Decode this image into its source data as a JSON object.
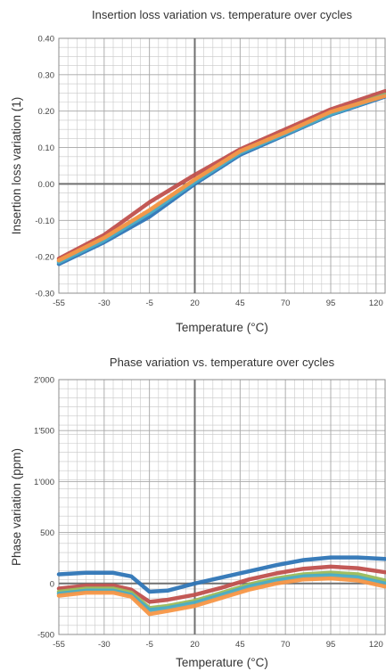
{
  "chart_data": [
    {
      "type": "line",
      "title": "Insertion loss variation vs. temperature over cycles",
      "xlabel": "Temperature (°C)",
      "ylabel": "Insertion loss variation (1)",
      "xlim": [
        -55,
        125
      ],
      "ylim": [
        -0.3,
        0.4
      ],
      "x_ticks": [
        -55,
        -30,
        -5,
        20,
        45,
        70,
        95,
        120
      ],
      "y_ticks": [
        0.4,
        0.3,
        0.2,
        0.1,
        0.0,
        -0.1,
        -0.2,
        -0.3
      ],
      "x_tick_labels": [
        "-55",
        "-30",
        "-5",
        "20",
        "45",
        "70",
        "95",
        "120"
      ],
      "y_tick_labels": [
        "0.40",
        "0.30",
        "0.20",
        "0.10",
        "0.00",
        "-0.10",
        "-0.20",
        "-0.30"
      ],
      "grid": true,
      "x": [
        -55,
        -30,
        -5,
        20,
        45,
        70,
        95,
        125
      ],
      "series": [
        {
          "color": "#2e75b6",
          "values": [
            -0.22,
            -0.16,
            -0.09,
            0.0,
            0.08,
            0.135,
            0.19,
            0.24
          ]
        },
        {
          "color": "#c0504d",
          "values": [
            -0.205,
            -0.14,
            -0.05,
            0.025,
            0.095,
            0.15,
            0.205,
            0.255
          ]
        },
        {
          "color": "#9bbb59",
          "values": [
            -0.212,
            -0.15,
            -0.075,
            0.01,
            0.088,
            0.14,
            0.195,
            0.245
          ]
        },
        {
          "color": "#4bacc6",
          "values": [
            -0.215,
            -0.155,
            -0.08,
            0.005,
            0.085,
            0.138,
            0.192,
            0.243
          ]
        },
        {
          "color": "#f79646",
          "values": [
            -0.21,
            -0.148,
            -0.072,
            0.012,
            0.09,
            0.142,
            0.198,
            0.242
          ]
        }
      ]
    },
    {
      "type": "line",
      "title": "Phase variation vs. temperature over cycles",
      "xlabel": "Temperature (°C)",
      "ylabel": "Phase variation (ppm)",
      "xlim": [
        -55,
        125
      ],
      "ylim": [
        -500,
        2000
      ],
      "x_ticks": [
        -55,
        -30,
        -5,
        20,
        45,
        70,
        95,
        120
      ],
      "y_ticks": [
        2000,
        1500,
        1000,
        500,
        0,
        -500
      ],
      "x_tick_labels": [
        "-55",
        "-30",
        "-5",
        "20",
        "45",
        "70",
        "95",
        "120"
      ],
      "y_tick_labels": [
        "2'000",
        "1'500",
        "1'000",
        "500",
        "0",
        "-500"
      ],
      "grid": true,
      "x": [
        -55,
        -40,
        -25,
        -15,
        -5,
        5,
        20,
        35,
        50,
        65,
        80,
        95,
        110,
        125
      ],
      "series": [
        {
          "color": "#2e75b6",
          "values": [
            90,
            105,
            105,
            70,
            -80,
            -70,
            0,
            60,
            120,
            180,
            230,
            255,
            255,
            240
          ]
        },
        {
          "color": "#c0504d",
          "values": [
            -50,
            -20,
            -20,
            -60,
            -180,
            -160,
            -110,
            -40,
            40,
            100,
            145,
            165,
            150,
            110
          ]
        },
        {
          "color": "#9bbb59",
          "values": [
            -80,
            -50,
            -50,
            -90,
            -240,
            -220,
            -170,
            -90,
            -10,
            50,
            90,
            105,
            90,
            30
          ]
        },
        {
          "color": "#4bacc6",
          "values": [
            -100,
            -70,
            -70,
            -110,
            -260,
            -240,
            -190,
            -110,
            -30,
            30,
            70,
            80,
            60,
            0
          ]
        },
        {
          "color": "#f79646",
          "values": [
            -120,
            -90,
            -90,
            -130,
            -300,
            -270,
            -220,
            -140,
            -60,
            0,
            40,
            50,
            30,
            -30
          ]
        }
      ]
    }
  ]
}
